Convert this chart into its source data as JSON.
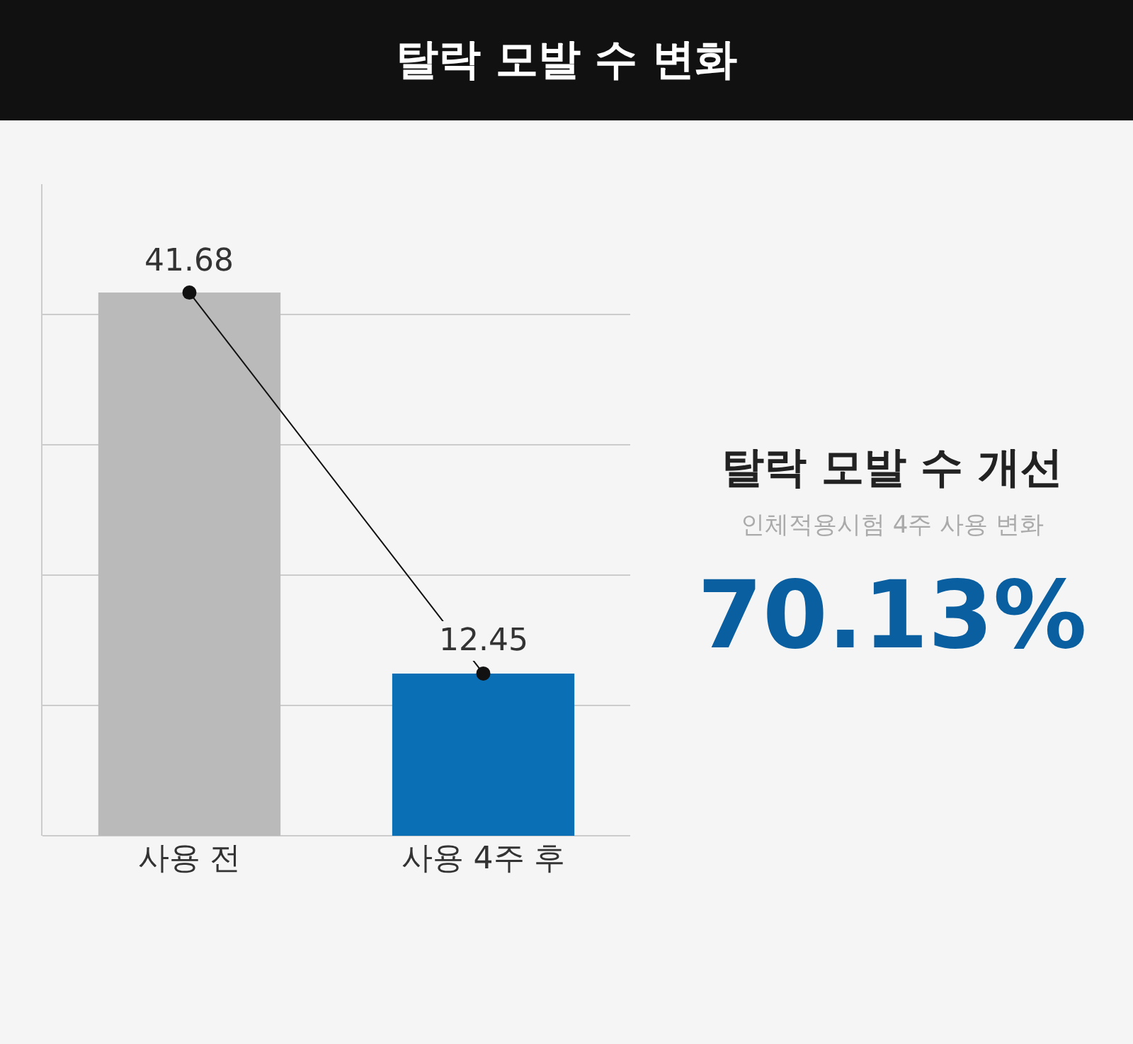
{
  "chart_data": {
    "type": "bar",
    "title": "탈락 모발 수 변화",
    "categories": [
      "사용 전",
      "사용 4주 후"
    ],
    "series": [
      {
        "values": [
          41.68,
          12.45
        ],
        "value_labels": [
          "41.68",
          "12.45"
        ],
        "colors": [
          "#bababa",
          "#0a6fb5"
        ]
      },
      {
        "type": "line",
        "values": [
          41.68,
          12.45
        ],
        "color": "#111111",
        "marker": "circle"
      }
    ],
    "ylim": [
      0,
      50
    ],
    "yticks": [
      {
        "value": 10,
        "label": null
      },
      {
        "value": 20,
        "label": null
      },
      {
        "value": 30,
        "label": null
      },
      {
        "value": 40,
        "label": null
      }
    ],
    "grid": "y",
    "tick_labels": "x",
    "annotations": [
      "탈락 모발 수 개선",
      "인체적용시험 4주 사용 변화",
      "70.13%"
    ]
  }
}
